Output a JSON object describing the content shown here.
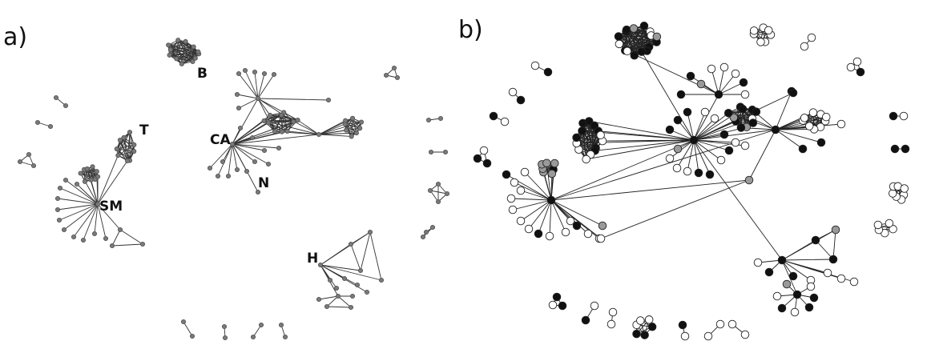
{
  "figure": {
    "panels": [
      {
        "key": "a",
        "label": "a)"
      },
      {
        "key": "b",
        "label": "b)"
      }
    ],
    "node_labels": [
      "B",
      "T",
      "CA",
      "N",
      "SM",
      "H"
    ],
    "colors": {
      "panel_a_node": "#7a7a7a",
      "node_black": "#111111",
      "node_gray": "#9a9a9a",
      "node_white": "#ffffff",
      "edge": "#222222"
    },
    "panel_b_node_types": [
      "black",
      "gray",
      "white"
    ]
  }
}
